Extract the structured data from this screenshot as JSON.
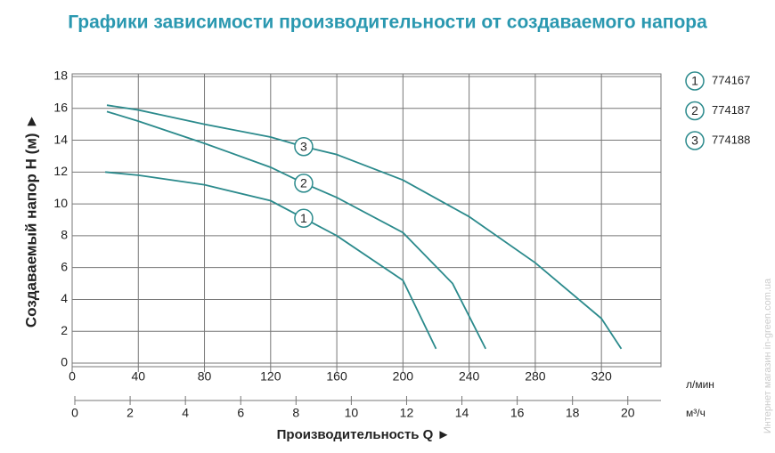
{
  "chart_data": {
    "type": "line",
    "title": "Графики зависимости производительности от создаваемого напора",
    "x_label": "Производительность Q ►",
    "y_label": "Создаваемый напор H (м) ►",
    "x_unit": "л/мин",
    "x2_unit": "м³/ч",
    "watermark": "Интернет магазин  in-green.com.ua",
    "xlim": [
      0,
      356
    ],
    "xticks": [
      0,
      40,
      80,
      120,
      160,
      200,
      240,
      280,
      320
    ],
    "x2lim": [
      0,
      21.2
    ],
    "x2ticks": [
      0,
      2,
      4,
      6,
      8,
      10,
      12,
      14,
      16,
      18,
      20
    ],
    "ylim": [
      0,
      18
    ],
    "yticks": [
      0,
      2,
      4,
      6,
      8,
      10,
      12,
      14,
      16,
      18
    ],
    "grid": true,
    "series": [
      {
        "name": "774167",
        "label": "1",
        "color": "#2b8a8c",
        "x": [
          20,
          40,
          80,
          120,
          140,
          160,
          200,
          220
        ],
        "values": [
          12,
          11.8,
          11.2,
          10.2,
          9.1,
          8.0,
          5.2,
          0.9
        ]
      },
      {
        "name": "774187",
        "label": "2",
        "color": "#2b8a8c",
        "x": [
          21,
          40,
          80,
          120,
          140,
          160,
          200,
          230,
          250
        ],
        "values": [
          15.8,
          15.2,
          13.8,
          12.3,
          11.3,
          10.4,
          8.2,
          5.0,
          0.9
        ]
      },
      {
        "name": "774188",
        "label": "3",
        "color": "#2b8a8c",
        "x": [
          21,
          40,
          80,
          120,
          140,
          160,
          200,
          240,
          280,
          320,
          332
        ],
        "values": [
          16.2,
          15.9,
          15.0,
          14.2,
          13.6,
          13.1,
          11.5,
          9.2,
          6.3,
          2.8,
          0.9
        ]
      }
    ]
  }
}
